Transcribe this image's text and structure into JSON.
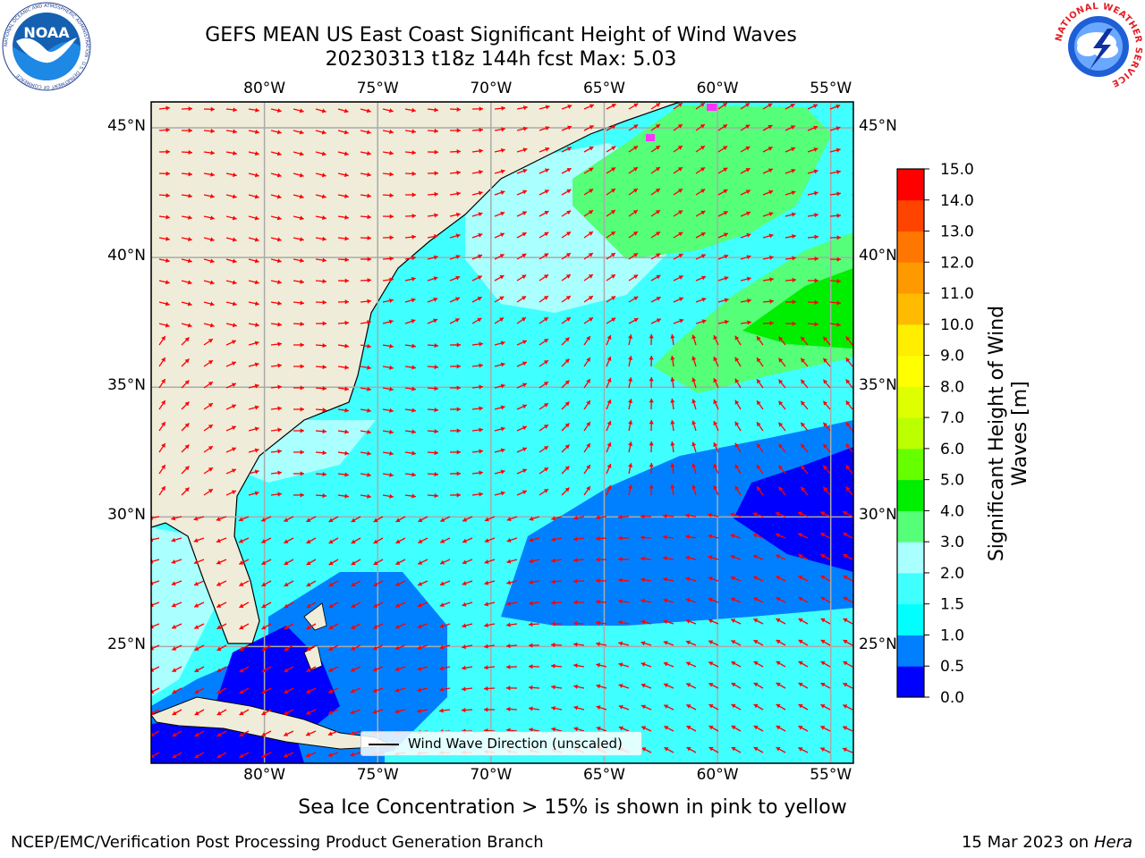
{
  "header": {
    "title_line1": "GEFS MEAN US East Coast Significant Height of Wind Waves",
    "title_line2": "20230313 t18z 144h fcst   Max: 5.03",
    "logo_left": "NOAA",
    "logo_left_ring_text": "NATIONAL OCEANIC AND ATMOSPHERIC ADMINISTRATION · U.S. DEPARTMENT OF COMMERCE",
    "logo_right_ring_text": "NATIONAL WEATHER SERVICE"
  },
  "map": {
    "lon_range": [
      -85,
      -54
    ],
    "lat_range": [
      20.5,
      46
    ],
    "lon_ticks": [
      "80°W",
      "75°W",
      "70°W",
      "65°W",
      "60°W",
      "55°W"
    ],
    "lat_ticks": [
      "45°N",
      "40°N",
      "35°N",
      "30°N",
      "25°N"
    ],
    "grid": true,
    "land_color": "#efedda",
    "vector_color": "#ff0000",
    "vector_type": "wind wave direction arrows"
  },
  "legend": {
    "label": "Wind Wave Direction (unscaled)",
    "placement": "bottom-center"
  },
  "colorbar": {
    "label": "Significant Height of Wind Waves [m]",
    "label_line1": "Significant Height of Wind",
    "label_line2": "Waves [m]",
    "ticks": [
      "15.0",
      "14.0",
      "13.0",
      "12.0",
      "11.0",
      "10.0",
      "9.0",
      "8.0",
      "7.0",
      "6.0",
      "5.0",
      "4.0",
      "3.0",
      "2.0",
      "1.5",
      "1.0",
      "0.5",
      "0.0"
    ],
    "bins": [
      {
        "from": 0.0,
        "to": 0.5,
        "color": "#0000ff"
      },
      {
        "from": 0.5,
        "to": 1.0,
        "color": "#0080ff"
      },
      {
        "from": 1.0,
        "to": 1.5,
        "color": "#00ffff"
      },
      {
        "from": 1.5,
        "to": 2.0,
        "color": "#40ffff"
      },
      {
        "from": 2.0,
        "to": 3.0,
        "color": "#aaffff"
      },
      {
        "from": 3.0,
        "to": 4.0,
        "color": "#55ff77"
      },
      {
        "from": 4.0,
        "to": 5.0,
        "color": "#00ee00"
      },
      {
        "from": 5.0,
        "to": 6.0,
        "color": "#66ff00"
      },
      {
        "from": 6.0,
        "to": 7.0,
        "color": "#bbff00"
      },
      {
        "from": 7.0,
        "to": 8.0,
        "color": "#ddff00"
      },
      {
        "from": 8.0,
        "to": 9.0,
        "color": "#ffff00"
      },
      {
        "from": 9.0,
        "to": 10.0,
        "color": "#ffee00"
      },
      {
        "from": 10.0,
        "to": 11.0,
        "color": "#ffbb00"
      },
      {
        "from": 11.0,
        "to": 12.0,
        "color": "#ff9900"
      },
      {
        "from": 12.0,
        "to": 13.0,
        "color": "#ff7700"
      },
      {
        "from": 13.0,
        "to": 14.0,
        "color": "#ff4400"
      },
      {
        "from": 14.0,
        "to": 15.0,
        "color": "#ff0000"
      }
    ]
  },
  "footer": {
    "caption": "Sea Ice Concentration > 15% is shown in pink to yellow",
    "credit": "NCEP/EMC/Verification Post Processing Product Generation Branch",
    "date": "15 Mar 2023 on",
    "machine": "Hera"
  }
}
